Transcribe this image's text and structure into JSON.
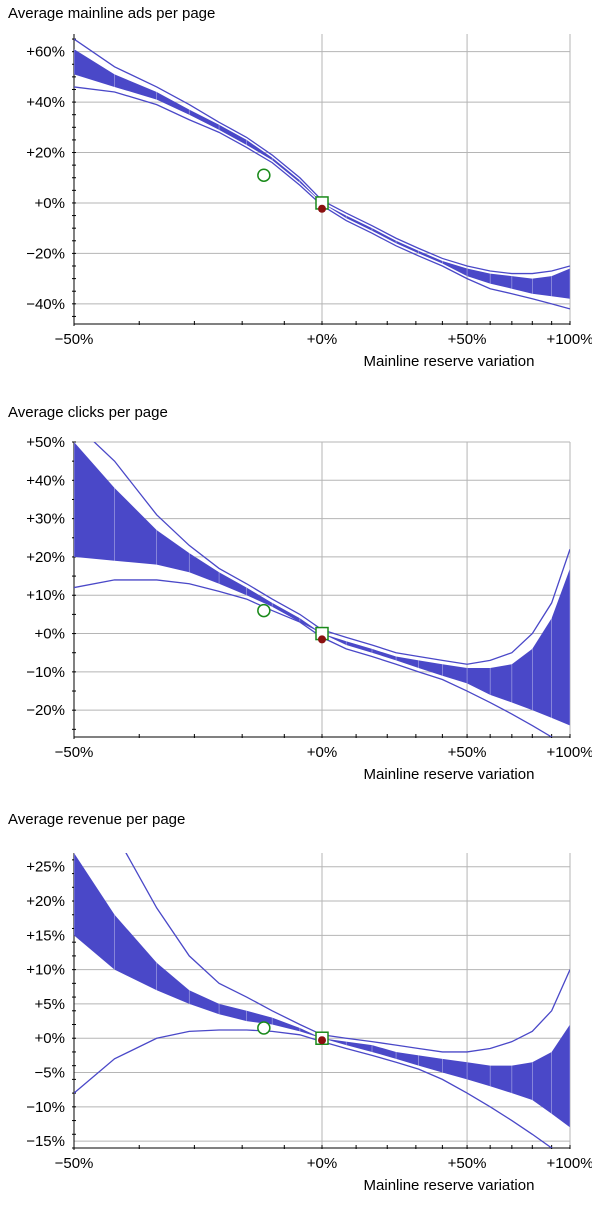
{
  "chart_data": [
    {
      "type": "area",
      "title": "Average mainline ads per page",
      "xlabel": "Mainline reserve variation",
      "x_ticks": [
        "−50%",
        "+0%",
        "+50%",
        "+100%"
      ],
      "y_ticks": [
        "+60%",
        "+40%",
        "+20%",
        "+0%",
        "−20%",
        "−40%"
      ],
      "x_scale": "log(1+x)",
      "xlim": [
        -50,
        100
      ],
      "ylim": [
        -48,
        67
      ],
      "x": [
        -50,
        -44,
        -37,
        -31,
        -25,
        -19,
        -13,
        -6,
        0,
        7,
        15,
        23,
        31,
        40,
        50,
        60,
        70,
        80,
        90,
        100
      ],
      "band": {
        "upper": [
          61,
          51,
          44,
          37,
          31,
          25,
          18,
          9,
          0,
          -5,
          -10,
          -15,
          -19,
          -23,
          -26,
          -28,
          -29,
          -30,
          -29,
          -26
        ],
        "lower": [
          51,
          46,
          41,
          35,
          29,
          23,
          17,
          8,
          0,
          -6,
          -11,
          -16,
          -20,
          -24,
          -29,
          -32,
          -34,
          -36,
          -37,
          -38
        ]
      },
      "ci_upper": [
        65,
        54,
        46,
        39,
        32,
        26,
        19,
        10,
        1,
        -4,
        -9,
        -14,
        -18,
        -22,
        -25,
        -27,
        -28,
        -28,
        -27,
        -25
      ],
      "ci_lower": [
        46,
        44,
        39,
        33,
        28,
        22,
        16,
        7,
        -1,
        -7,
        -12,
        -17,
        -21,
        -25,
        -30,
        -34,
        -36,
        -38,
        -40,
        -42
      ],
      "markers": [
        {
          "shape": "circle",
          "x": -15,
          "y": 11
        },
        {
          "shape": "square",
          "x": 0,
          "y": 0
        },
        {
          "shape": "dot",
          "x": 0,
          "y": -1.5
        }
      ]
    },
    {
      "type": "area",
      "title": "Average clicks per page",
      "xlabel": "Mainline reserve variation",
      "x_ticks": [
        "−50%",
        "+0%",
        "+50%",
        "+100%"
      ],
      "y_ticks": [
        "+50%",
        "+40%",
        "+30%",
        "+20%",
        "+10%",
        "+0%",
        "−10%",
        "−20%"
      ],
      "x_scale": "log(1+x)",
      "xlim": [
        -50,
        100
      ],
      "ylim": [
        -27,
        50
      ],
      "x": [
        -50,
        -44,
        -37,
        -31,
        -25,
        -19,
        -13,
        -6,
        0,
        7,
        15,
        23,
        31,
        40,
        50,
        60,
        70,
        80,
        90,
        100
      ],
      "band": {
        "upper": [
          50,
          38,
          27,
          21,
          16,
          12,
          8,
          4,
          0,
          -2,
          -4,
          -6,
          -7,
          -8,
          -9,
          -9,
          -8,
          -4,
          4,
          17
        ],
        "lower": [
          20,
          19,
          18,
          16,
          13,
          10,
          7,
          3,
          0,
          -3,
          -5,
          -7,
          -9,
          -11,
          -13,
          -16,
          -18,
          -20,
          -22,
          -24
        ]
      },
      "ci_upper": [
        55,
        45,
        31,
        23,
        17,
        13,
        9,
        5,
        1,
        -1,
        -3,
        -5,
        -6,
        -7,
        -8,
        -7,
        -5,
        0,
        8,
        22
      ],
      "ci_lower": [
        12,
        14,
        14,
        13,
        11,
        9,
        6,
        3,
        -1,
        -4,
        -6,
        -8,
        -10,
        -12,
        -15,
        -18,
        -21,
        -24,
        -27,
        -30
      ],
      "markers": [
        {
          "shape": "circle",
          "x": -15,
          "y": 6
        },
        {
          "shape": "square",
          "x": 0,
          "y": 0
        },
        {
          "shape": "dot",
          "x": 0,
          "y": -1
        }
      ]
    },
    {
      "type": "area",
      "title": "Average revenue per page",
      "xlabel": "Mainline reserve variation",
      "x_ticks": [
        "−50%",
        "+0%",
        "+50%",
        "+100%"
      ],
      "y_ticks": [
        "+25%",
        "+20%",
        "+15%",
        "+10%",
        "+5%",
        "+0%",
        "−5%",
        "−10%",
        "−15%"
      ],
      "x_scale": "log(1+x)",
      "xlim": [
        -50,
        100
      ],
      "ylim": [
        -16,
        27
      ],
      "x": [
        -50,
        -44,
        -37,
        -31,
        -25,
        -19,
        -13,
        -6,
        0,
        7,
        15,
        23,
        31,
        40,
        50,
        60,
        70,
        80,
        90,
        100
      ],
      "band": {
        "upper": [
          27,
          18,
          11,
          7,
          5,
          4,
          3,
          1.5,
          0,
          -0.5,
          -1,
          -2,
          -2.5,
          -3,
          -3.5,
          -4,
          -4,
          -3.5,
          -2,
          2
        ],
        "lower": [
          15,
          10,
          7,
          5,
          3.5,
          2.5,
          2,
          1,
          0,
          -1,
          -2,
          -3,
          -4,
          -5,
          -6,
          -7,
          -8,
          -9,
          -11,
          -13
        ]
      },
      "ci_upper": [
        40,
        30,
        19,
        12,
        8,
        6,
        4,
        2,
        0.5,
        0,
        -0.5,
        -1,
        -1.5,
        -2,
        -2,
        -1.5,
        -0.5,
        1,
        4,
        10
      ],
      "ci_lower": [
        -8,
        -3,
        0,
        1,
        1.2,
        1.2,
        1,
        0.5,
        -0.5,
        -1.5,
        -2.5,
        -3.5,
        -4.5,
        -6,
        -8,
        -10,
        -12,
        -14,
        -16,
        -18
      ],
      "markers": [
        {
          "shape": "circle",
          "x": -15,
          "y": 1.5
        },
        {
          "shape": "square",
          "x": 0,
          "y": 0
        },
        {
          "shape": "dot",
          "x": 0,
          "y": 0
        }
      ]
    }
  ]
}
